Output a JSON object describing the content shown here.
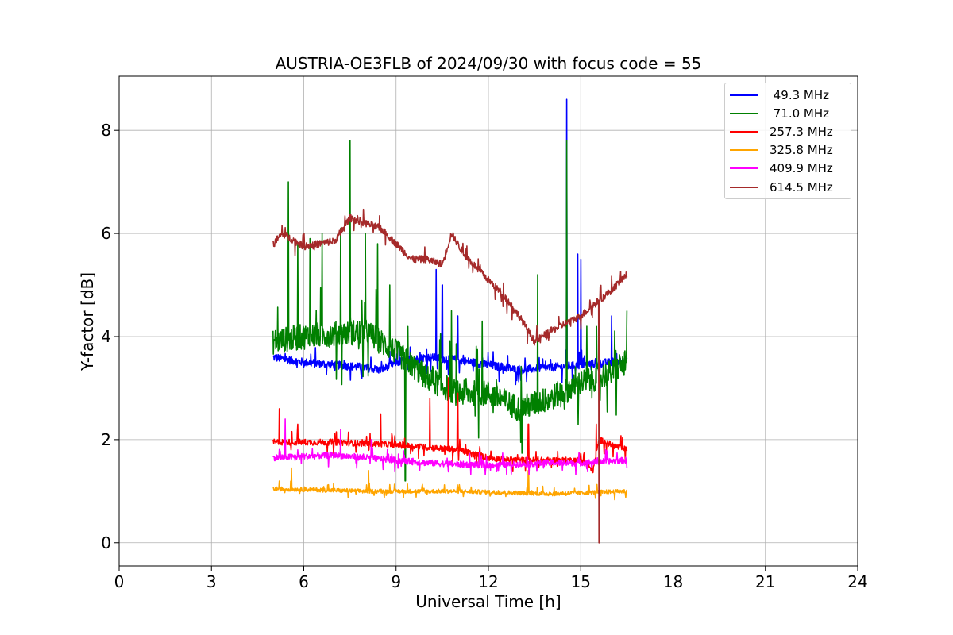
{
  "chart_data": {
    "type": "line",
    "title": "AUSTRIA-OE3FLB of 2024/09/30 with focus code = 55",
    "xlabel": "Universal Time [h]",
    "ylabel": "Y-factor [dB]",
    "xlim": [
      0,
      24
    ],
    "ylim": [
      -0.45,
      9.05
    ],
    "xticks": [
      0,
      3,
      6,
      9,
      12,
      15,
      18,
      21,
      24
    ],
    "yticks": [
      0,
      2,
      4,
      6,
      8
    ],
    "grid": true,
    "legend_position": "top-right",
    "series": [
      {
        "name": " 49.3 MHz",
        "color": "#0000ff",
        "base": [
          [
            5.0,
            3.6
          ],
          [
            6.0,
            3.5
          ],
          [
            7.0,
            3.45
          ],
          [
            8.0,
            3.4
          ],
          [
            8.5,
            3.35
          ],
          [
            9.0,
            3.5
          ],
          [
            10.0,
            3.6
          ],
          [
            11.0,
            3.55
          ],
          [
            12.0,
            3.45
          ],
          [
            13.0,
            3.35
          ],
          [
            14.0,
            3.4
          ],
          [
            15.0,
            3.45
          ],
          [
            16.0,
            3.5
          ],
          [
            16.5,
            3.55
          ]
        ],
        "noise": 0.08,
        "spikes": [
          [
            10.3,
            5.3
          ],
          [
            10.5,
            5.0
          ],
          [
            14.55,
            8.6
          ],
          [
            14.9,
            5.6
          ],
          [
            15.0,
            5.5
          ],
          [
            16.0,
            4.4
          ],
          [
            11.0,
            4.4
          ]
        ]
      },
      {
        "name": " 71.0 MHz",
        "color": "#008000",
        "base": [
          [
            5.0,
            3.9
          ],
          [
            6.0,
            4.0
          ],
          [
            7.0,
            4.05
          ],
          [
            8.0,
            4.1
          ],
          [
            9.0,
            3.7
          ],
          [
            10.0,
            3.2
          ],
          [
            11.0,
            2.9
          ],
          [
            12.0,
            2.9
          ],
          [
            13.0,
            2.6
          ],
          [
            14.0,
            2.8
          ],
          [
            15.0,
            3.1
          ],
          [
            16.0,
            3.3
          ],
          [
            16.5,
            3.5
          ]
        ],
        "noise": 0.25,
        "spikes": [
          [
            5.5,
            7.0
          ],
          [
            7.5,
            7.8
          ],
          [
            5.8,
            5.8
          ],
          [
            6.2,
            5.9
          ],
          [
            6.6,
            6.0
          ],
          [
            7.2,
            6.1
          ],
          [
            8.0,
            6.0
          ],
          [
            8.4,
            5.8
          ],
          [
            8.8,
            5.0
          ],
          [
            9.3,
            1.2
          ],
          [
            10.8,
            4.5
          ],
          [
            11.8,
            4.3
          ],
          [
            13.6,
            5.2
          ],
          [
            14.55,
            7.8
          ],
          [
            15.2,
            4.2
          ],
          [
            16.5,
            4.5
          ]
        ]
      },
      {
        "name": "257.3 MHz",
        "color": "#ff0000",
        "base": [
          [
            5.0,
            1.95
          ],
          [
            7.0,
            1.95
          ],
          [
            9.0,
            1.9
          ],
          [
            11.0,
            1.8
          ],
          [
            12.0,
            1.65
          ],
          [
            13.0,
            1.6
          ],
          [
            14.0,
            1.6
          ],
          [
            15.0,
            1.6
          ],
          [
            15.4,
            1.4
          ],
          [
            15.6,
            2.0
          ],
          [
            16.0,
            1.9
          ],
          [
            16.5,
            1.8
          ]
        ],
        "noise": 0.06,
        "spikes": [
          [
            5.2,
            2.6
          ],
          [
            5.8,
            2.3
          ],
          [
            8.5,
            2.5
          ],
          [
            10.1,
            2.8
          ],
          [
            10.7,
            3.2
          ],
          [
            11.0,
            2.9
          ],
          [
            13.3,
            2.3
          ],
          [
            15.5,
            2.3
          ]
        ]
      },
      {
        "name": "325.8 MHz",
        "color": "#ffa500",
        "base": [
          [
            5.0,
            1.05
          ],
          [
            8.0,
            1.0
          ],
          [
            11.0,
            1.0
          ],
          [
            14.0,
            0.95
          ],
          [
            16.5,
            1.0
          ]
        ],
        "noise": 0.04,
        "spikes": [
          [
            5.6,
            1.45
          ],
          [
            8.1,
            1.4
          ],
          [
            13.3,
            1.4
          ]
        ]
      },
      {
        "name": "409.9 MHz",
        "color": "#ff00ff",
        "base": [
          [
            5.0,
            1.65
          ],
          [
            7.0,
            1.7
          ],
          [
            8.0,
            1.65
          ],
          [
            9.0,
            1.6
          ],
          [
            10.0,
            1.55
          ],
          [
            12.0,
            1.5
          ],
          [
            14.0,
            1.55
          ],
          [
            15.0,
            1.55
          ],
          [
            16.5,
            1.6
          ]
        ],
        "noise": 0.06,
        "spikes": [
          [
            5.4,
            2.4
          ],
          [
            7.2,
            2.2
          ],
          [
            8.2,
            2.0
          ]
        ]
      },
      {
        "name": "614.5 MHz",
        "color": "#a52a2a",
        "base": [
          [
            5.0,
            5.8
          ],
          [
            5.3,
            6.0
          ],
          [
            6.0,
            5.75
          ],
          [
            7.0,
            5.85
          ],
          [
            7.5,
            6.3
          ],
          [
            8.0,
            6.2
          ],
          [
            8.5,
            6.1
          ],
          [
            9.0,
            5.8
          ],
          [
            9.5,
            5.5
          ],
          [
            10.0,
            5.5
          ],
          [
            10.5,
            5.4
          ],
          [
            10.8,
            6.0
          ],
          [
            11.2,
            5.6
          ],
          [
            12.0,
            5.1
          ],
          [
            12.5,
            4.8
          ],
          [
            13.0,
            4.4
          ],
          [
            13.5,
            3.9
          ],
          [
            14.0,
            4.1
          ],
          [
            15.0,
            4.4
          ],
          [
            16.0,
            4.9
          ],
          [
            16.5,
            5.2
          ]
        ],
        "noise": 0.07,
        "spikes": [
          [
            15.6,
            0.0
          ]
        ]
      }
    ]
  }
}
